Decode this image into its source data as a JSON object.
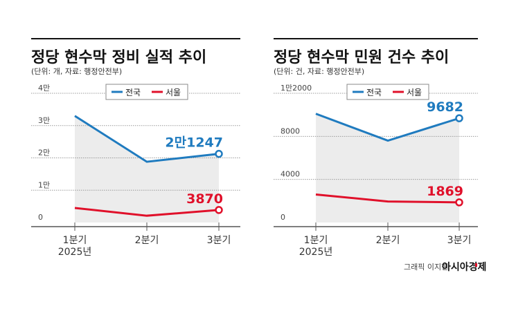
{
  "chart_data": [
    {
      "type": "line",
      "title": "정당 현수막 정비 실적 추이",
      "subtitle": "(단위: 개, 자료: 행정안전부)",
      "categories": [
        "1분기",
        "2분기",
        "3분기"
      ],
      "category_note": "2025년",
      "yticks": [
        {
          "v": 0,
          "t": "0"
        },
        {
          "v": 10000,
          "t": "1만"
        },
        {
          "v": 20000,
          "t": "2만"
        },
        {
          "v": 30000,
          "t": "3만"
        },
        {
          "v": 40000,
          "t": "4만"
        }
      ],
      "ylim": [
        0,
        40000
      ],
      "series": [
        {
          "name": "전국",
          "color": "#1f7bbf",
          "values": [
            33000,
            18800,
            21247
          ],
          "label": "2만1247"
        },
        {
          "name": "서울",
          "color": "#e0102a",
          "values": [
            4500,
            2100,
            3870
          ],
          "label": "3870"
        }
      ]
    },
    {
      "type": "line",
      "title": "정당 현수막 민원 건수 추이",
      "subtitle": "(단위: 건, 자료: 행정안전부)",
      "categories": [
        "1분기",
        "2분기",
        "3분기"
      ],
      "category_note": "2025년",
      "yticks": [
        {
          "v": 0,
          "t": "0"
        },
        {
          "v": 4000,
          "t": "4000"
        },
        {
          "v": 8000,
          "t": "8000"
        },
        {
          "v": 12000,
          "t": "1만2000"
        }
      ],
      "ylim": [
        0,
        12000
      ],
      "series": [
        {
          "name": "전국",
          "color": "#1f7bbf",
          "values": [
            10100,
            7600,
            9682
          ],
          "label": "9682"
        },
        {
          "name": "서울",
          "color": "#e0102a",
          "values": [
            2600,
            1950,
            1869
          ],
          "label": "1869"
        }
      ]
    }
  ],
  "credit": "그래픽 이지현",
  "brand": "아시아경제"
}
